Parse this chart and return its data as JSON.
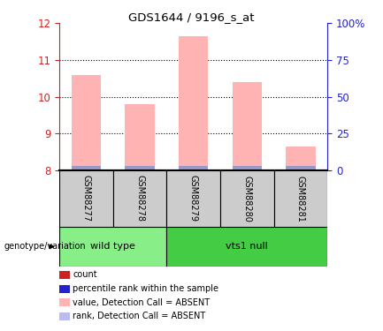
{
  "title": "GDS1644 / 9196_s_at",
  "samples": [
    "GSM88277",
    "GSM88278",
    "GSM88279",
    "GSM88280",
    "GSM88281"
  ],
  "bar_values": [
    10.6,
    9.8,
    11.65,
    10.4,
    8.65
  ],
  "bar_base": 8.0,
  "blue_bar_height": 0.13,
  "ylim_left": [
    8,
    12
  ],
  "ylim_right": [
    0,
    100
  ],
  "yticks_left": [
    8,
    9,
    10,
    11,
    12
  ],
  "yticks_right": [
    0,
    25,
    50,
    75,
    100
  ],
  "right_tick_labels": [
    "0",
    "25",
    "50",
    "75",
    "100%"
  ],
  "bar_color": "#ffb3b3",
  "blue_bar_color": "#9999cc",
  "bar_width": 0.55,
  "group_wild_label": "wild type",
  "group_vts1_label": "vts1 null",
  "group_wild_color": "#88ee88",
  "group_vts1_color": "#44cc44",
  "group_label": "genotype/variation",
  "legend_items": [
    {
      "color": "#cc2222",
      "label": "count"
    },
    {
      "color": "#2222cc",
      "label": "percentile rank within the sample"
    },
    {
      "color": "#ffb3b3",
      "label": "value, Detection Call = ABSENT"
    },
    {
      "color": "#bbbbee",
      "label": "rank, Detection Call = ABSENT"
    }
  ],
  "left_axis_color": "#cc2222",
  "right_axis_color": "#2222cc",
  "background_color": "#ffffff",
  "sample_box_color": "#cccccc",
  "grid_yticks": [
    9,
    10,
    11
  ]
}
